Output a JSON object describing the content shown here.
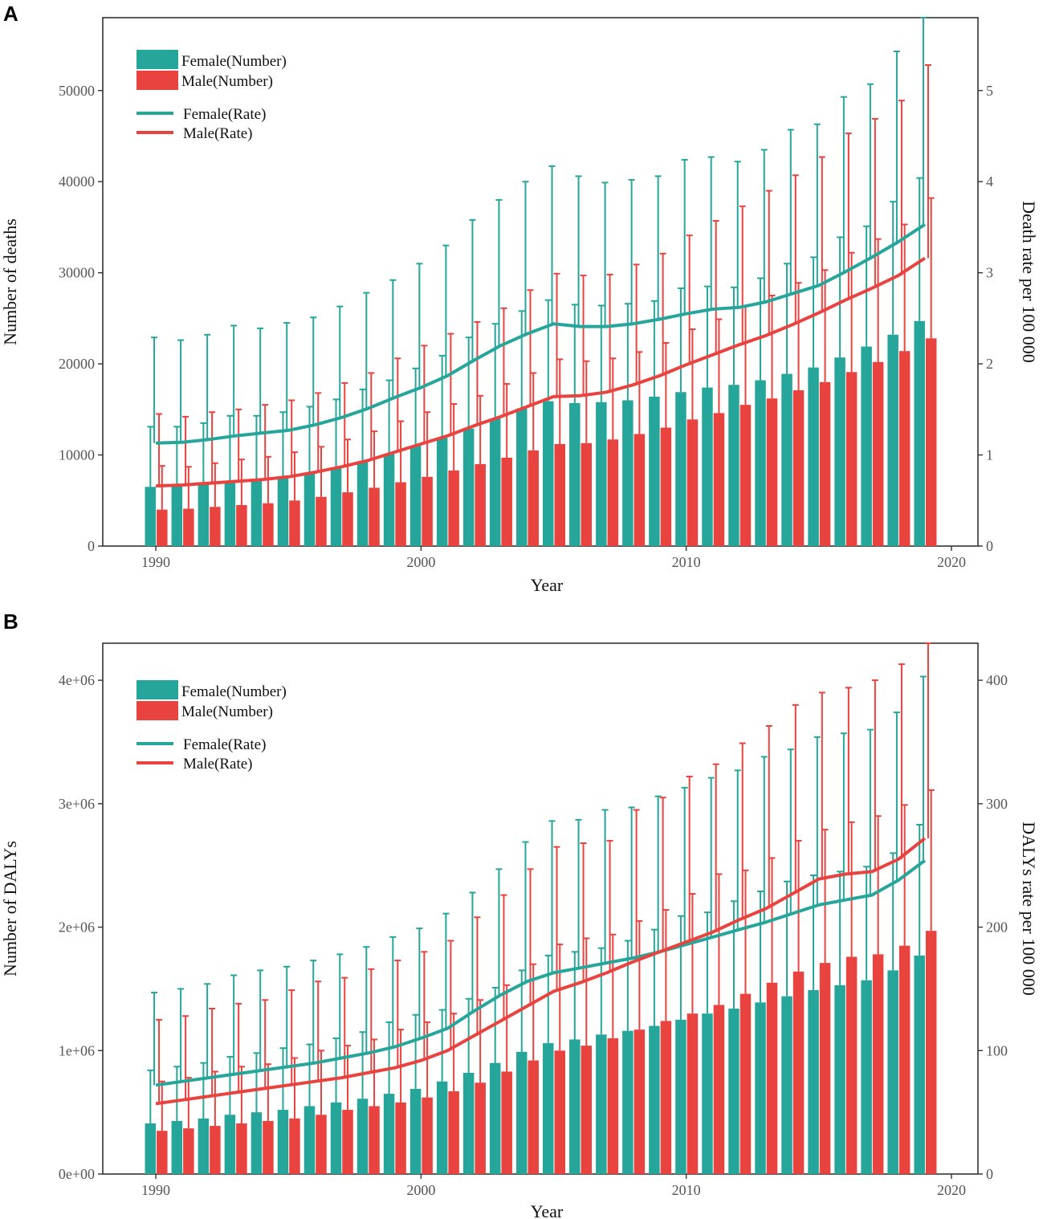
{
  "colors": {
    "female": "#26A69A",
    "male": "#E8433F",
    "axis": "#333333"
  },
  "chart_data": [
    {
      "panel": "A",
      "type": "bar",
      "xlabel": "Year",
      "ylabel": "Number of deaths",
      "y2label": "Death rate per 100 000",
      "xlim": [
        1988,
        2021
      ],
      "ylim": [
        0,
        58000
      ],
      "y2lim": [
        0,
        5.8
      ],
      "xticks": [
        1990,
        2000,
        2010,
        2020
      ],
      "yticks": [
        0,
        10000,
        20000,
        30000,
        40000,
        50000
      ],
      "ytick_labels": [
        "0",
        "10000",
        "20000",
        "30000",
        "40000",
        "50000"
      ],
      "y2ticks": [
        0,
        1,
        2,
        3,
        4,
        5
      ],
      "y2tick_labels": [
        "0",
        "1",
        "2",
        "3",
        "4",
        "5"
      ],
      "legend": {
        "position": "top-left",
        "female_number": "Female(Number)",
        "male_number": "Male(Number)",
        "female_rate": "Female(Rate)",
        "male_rate": "Male(Rate)"
      },
      "years": [
        1990,
        1991,
        1992,
        1993,
        1994,
        1995,
        1996,
        1997,
        1998,
        1999,
        2000,
        2001,
        2002,
        2003,
        2004,
        2005,
        2006,
        2007,
        2008,
        2009,
        2010,
        2011,
        2012,
        2013,
        2014,
        2015,
        2016,
        2017,
        2018,
        2019
      ],
      "series": [
        {
          "name": "Female(Number)",
          "kind": "bar",
          "values": [
            6500,
            6700,
            6800,
            7000,
            7200,
            7600,
            8000,
            8600,
            9300,
            10100,
            11000,
            11900,
            12900,
            14000,
            15100,
            15900,
            15700,
            15800,
            16000,
            16400,
            16900,
            17400,
            17700,
            18200,
            18900,
            19600,
            20700,
            21900,
            23200,
            24700
          ],
          "upper": [
            13100,
            13100,
            13500,
            14300,
            14300,
            14700,
            15300,
            16100,
            17200,
            18200,
            19500,
            20900,
            22900,
            24400,
            25800,
            27000,
            26500,
            26400,
            26600,
            26900,
            28300,
            28500,
            28400,
            29400,
            31000,
            31700,
            33900,
            35100,
            37800,
            40400
          ]
        },
        {
          "name": "Male(Number)",
          "kind": "bar",
          "values": [
            4000,
            4100,
            4300,
            4500,
            4700,
            5000,
            5400,
            5900,
            6400,
            7000,
            7600,
            8300,
            9000,
            9700,
            10500,
            11200,
            11300,
            11700,
            12300,
            13000,
            13900,
            14600,
            15500,
            16200,
            17100,
            18000,
            19100,
            20200,
            21400,
            22800
          ],
          "upper": [
            8800,
            8700,
            9100,
            9500,
            9800,
            10300,
            10900,
            11700,
            12600,
            13700,
            14700,
            15600,
            16500,
            17800,
            19000,
            20500,
            20300,
            20600,
            21300,
            22300,
            23800,
            24900,
            26300,
            27500,
            28900,
            30300,
            32200,
            33700,
            35300,
            38200
          ]
        },
        {
          "name": "Female(Rate)",
          "kind": "line",
          "values": [
            1.13,
            1.14,
            1.17,
            1.21,
            1.24,
            1.27,
            1.33,
            1.41,
            1.51,
            1.63,
            1.74,
            1.87,
            2.04,
            2.2,
            2.33,
            2.44,
            2.41,
            2.41,
            2.44,
            2.49,
            2.55,
            2.6,
            2.62,
            2.68,
            2.77,
            2.86,
            3.01,
            3.17,
            3.34,
            3.53
          ],
          "upper": [
            2.29,
            2.26,
            2.32,
            2.42,
            2.39,
            2.45,
            2.51,
            2.63,
            2.78,
            2.92,
            3.1,
            3.3,
            3.58,
            3.8,
            4.0,
            4.17,
            4.06,
            3.99,
            4.02,
            4.06,
            4.24,
            4.27,
            4.22,
            4.35,
            4.57,
            4.63,
            4.93,
            5.07,
            5.43,
            5.8
          ]
        },
        {
          "name": "Male(Rate)",
          "kind": "line",
          "values": [
            0.66,
            0.67,
            0.69,
            0.71,
            0.73,
            0.76,
            0.81,
            0.87,
            0.94,
            1.03,
            1.12,
            1.21,
            1.32,
            1.42,
            1.53,
            1.64,
            1.65,
            1.69,
            1.77,
            1.87,
            1.99,
            2.1,
            2.21,
            2.31,
            2.43,
            2.56,
            2.7,
            2.83,
            2.97,
            3.16
          ],
          "upper": [
            1.45,
            1.42,
            1.47,
            1.5,
            1.55,
            1.6,
            1.68,
            1.79,
            1.9,
            2.06,
            2.2,
            2.33,
            2.46,
            2.61,
            2.81,
            2.99,
            2.97,
            2.98,
            3.09,
            3.21,
            3.41,
            3.57,
            3.73,
            3.9,
            4.07,
            4.27,
            4.53,
            4.69,
            4.89,
            5.28
          ]
        }
      ]
    },
    {
      "panel": "B",
      "type": "bar",
      "xlabel": "Year",
      "ylabel": "Number of DALYs",
      "y2label": "DALYs rate per 100 000",
      "xlim": [
        1988,
        2021
      ],
      "ylim": [
        0,
        4300000
      ],
      "y2lim": [
        0,
        430
      ],
      "xticks": [
        1990,
        2000,
        2010,
        2020
      ],
      "yticks": [
        0,
        1000000,
        2000000,
        3000000,
        4000000
      ],
      "ytick_labels": [
        "0e+00",
        "1e+06",
        "2e+06",
        "3e+06",
        "4e+06"
      ],
      "y2ticks": [
        0,
        100,
        200,
        300,
        400
      ],
      "y2tick_labels": [
        "0",
        "100",
        "200",
        "300",
        "400"
      ],
      "legend": {
        "position": "top-left",
        "female_number": "Female(Number)",
        "male_number": "Male(Number)",
        "female_rate": "Female(Rate)",
        "male_rate": "Male(Rate)"
      },
      "years": [
        1990,
        1991,
        1992,
        1993,
        1994,
        1995,
        1996,
        1997,
        1998,
        1999,
        2000,
        2001,
        2002,
        2003,
        2004,
        2005,
        2006,
        2007,
        2008,
        2009,
        2010,
        2011,
        2012,
        2013,
        2014,
        2015,
        2016,
        2017,
        2018,
        2019
      ],
      "series": [
        {
          "name": "Female(Number)",
          "kind": "bar",
          "values": [
            410000,
            430000,
            450000,
            480000,
            500000,
            520000,
            550000,
            580000,
            610000,
            650000,
            690000,
            750000,
            820000,
            900000,
            990000,
            1060000,
            1090000,
            1130000,
            1160000,
            1200000,
            1250000,
            1300000,
            1340000,
            1390000,
            1440000,
            1490000,
            1530000,
            1570000,
            1650000,
            1770000
          ],
          "upper": [
            840000,
            870000,
            900000,
            950000,
            980000,
            1020000,
            1050000,
            1100000,
            1150000,
            1230000,
            1290000,
            1330000,
            1420000,
            1510000,
            1650000,
            1770000,
            1800000,
            1830000,
            1890000,
            1980000,
            2090000,
            2120000,
            2210000,
            2290000,
            2370000,
            2420000,
            2450000,
            2490000,
            2600000,
            2830000
          ]
        },
        {
          "name": "Male(Number)",
          "kind": "bar",
          "values": [
            350000,
            370000,
            390000,
            410000,
            430000,
            450000,
            480000,
            520000,
            550000,
            580000,
            620000,
            670000,
            740000,
            830000,
            920000,
            1000000,
            1040000,
            1100000,
            1170000,
            1240000,
            1300000,
            1370000,
            1460000,
            1550000,
            1640000,
            1710000,
            1760000,
            1780000,
            1850000,
            1970000
          ],
          "upper": [
            750000,
            780000,
            830000,
            870000,
            890000,
            940000,
            1000000,
            1040000,
            1090000,
            1170000,
            1230000,
            1300000,
            1410000,
            1530000,
            1700000,
            1860000,
            1910000,
            1940000,
            2050000,
            2140000,
            2270000,
            2430000,
            2460000,
            2560000,
            2700000,
            2790000,
            2850000,
            2900000,
            2990000,
            3110000
          ]
        },
        {
          "name": "Female(Rate)",
          "kind": "line",
          "values": [
            72,
            75,
            78,
            81,
            84,
            87,
            90,
            94,
            98,
            103,
            110,
            118,
            132,
            145,
            156,
            163,
            167,
            171,
            175,
            180,
            186,
            192,
            198,
            204,
            211,
            218,
            222,
            226,
            238,
            254
          ],
          "upper": [
            147,
            150,
            154,
            161,
            165,
            168,
            173,
            178,
            184,
            192,
            199,
            211,
            228,
            247,
            269,
            286,
            287,
            295,
            297,
            306,
            313,
            321,
            327,
            338,
            344,
            354,
            357,
            360,
            374,
            403
          ]
        },
        {
          "name": "Male(Rate)",
          "kind": "line",
          "values": [
            57,
            60,
            63,
            66,
            69,
            72,
            75,
            78,
            82,
            86,
            92,
            100,
            112,
            124,
            136,
            148,
            155,
            163,
            172,
            180,
            188,
            196,
            206,
            215,
            227,
            239,
            243,
            245,
            255,
            272
          ],
          "upper": [
            125,
            128,
            134,
            138,
            141,
            149,
            156,
            159,
            166,
            173,
            180,
            189,
            208,
            226,
            247,
            265,
            268,
            270,
            295,
            305,
            322,
            332,
            349,
            363,
            380,
            390,
            394,
            400,
            413,
            430
          ]
        }
      ]
    }
  ]
}
